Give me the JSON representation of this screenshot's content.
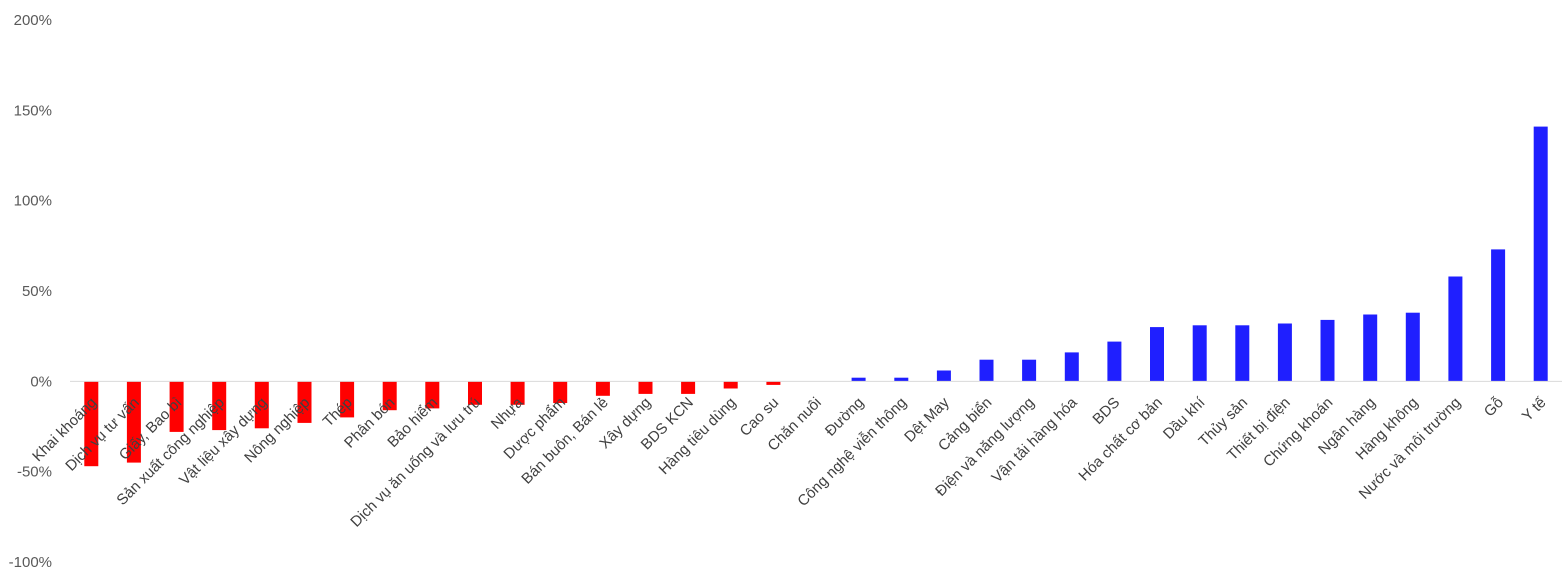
{
  "chart_data": {
    "type": "bar",
    "title": "",
    "xlabel": "",
    "ylabel": "",
    "ylim": [
      -1.0,
      2.0
    ],
    "y_ticks": [
      {
        "value": 2.0,
        "label": "200%"
      },
      {
        "value": 1.5,
        "label": "150%"
      },
      {
        "value": 1.0,
        "label": "100%"
      },
      {
        "value": 0.5,
        "label": "50%"
      },
      {
        "value": 0.0,
        "label": "0%"
      },
      {
        "value": -0.5,
        "label": "-50%"
      },
      {
        "value": -1.0,
        "label": "-100%"
      }
    ],
    "grid": false,
    "colors": {
      "negative": "#ff0000",
      "positive": "#1f1fff",
      "axis": "#d9d9d9"
    },
    "categories": [
      "Khai khoáng",
      "Dịch vụ tư vấn",
      "Giấy, Bao bì",
      "Sản xuất công nghiệp",
      "Vật liệu xây dựng",
      "Nông nghiệp",
      "Thép",
      "Phân bón",
      "Bảo hiểm",
      "Dịch vụ ăn uống và lưu trú",
      "Nhựa",
      "Dược phẩm",
      "Bán buôn, Bán lẻ",
      "Xây dựng",
      "BDS KCN",
      "Hàng tiêu dùng",
      "Cao su",
      "Chăn nuôi",
      "Đường",
      "Công nghệ viễn thông",
      "Dệt May",
      "Cảng biển",
      "Điện và năng lượng",
      "Vận tải hàng hóa",
      "BDS",
      "Hóa chất cơ bản",
      "Dầu khí",
      "Thủy sản",
      "Thiết bị điện",
      "Chứng khoán",
      "Ngân hàng",
      "Hàng không",
      "Nước và môi trường",
      "Gỗ",
      "Y tế"
    ],
    "values": [
      -0.47,
      -0.45,
      -0.28,
      -0.27,
      -0.26,
      -0.23,
      -0.2,
      -0.16,
      -0.15,
      -0.13,
      -0.13,
      -0.12,
      -0.08,
      -0.07,
      -0.07,
      -0.04,
      -0.02,
      0.0,
      0.02,
      0.02,
      0.06,
      0.12,
      0.12,
      0.16,
      0.22,
      0.3,
      0.31,
      0.31,
      0.32,
      0.34,
      0.37,
      0.38,
      0.58,
      0.73,
      1.41
    ]
  }
}
